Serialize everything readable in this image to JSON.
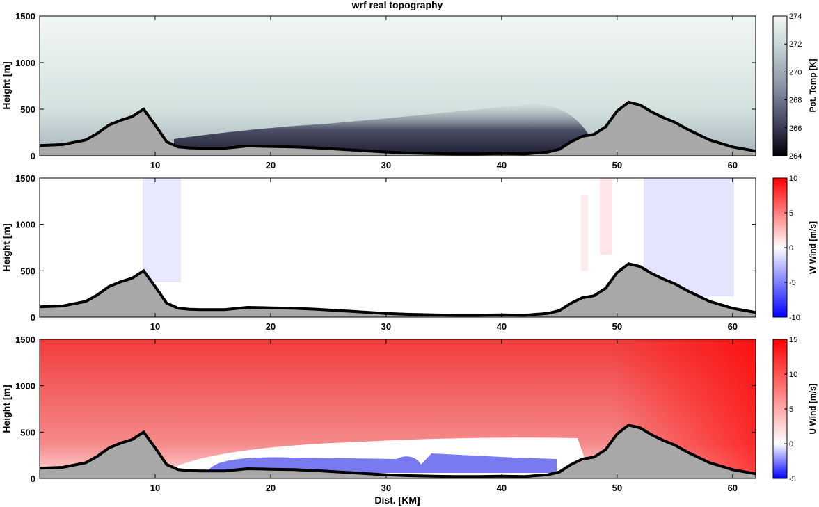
{
  "figure": {
    "title": "wrf real topography",
    "xlabel": "Dist. [KM]",
    "x_ticks": [
      10,
      20,
      30,
      40,
      50,
      60
    ],
    "y_ticks": [
      0,
      500,
      1000,
      1500
    ]
  },
  "chart_data": [
    {
      "type": "heatmap",
      "title": "wrf real topography",
      "xlabel": "",
      "ylabel": "Height [m]",
      "xlim": [
        0,
        62
      ],
      "ylim": [
        0,
        1500
      ],
      "colorbar": {
        "label": "Pot. Temp [K]",
        "ticks": [
          264,
          266,
          268,
          270,
          272,
          274
        ],
        "range": [
          264,
          274
        ],
        "colors": [
          "#000000",
          "#3a3a55",
          "#8c94a6",
          "#c8d8d8",
          "#f2f7f6"
        ]
      }
    },
    {
      "type": "heatmap",
      "xlabel": "",
      "ylabel": "Height [m]",
      "xlim": [
        0,
        62
      ],
      "ylim": [
        0,
        1500
      ],
      "colorbar": {
        "label": "W Wind [m/s]",
        "ticks": [
          -10,
          -5,
          0,
          5,
          10
        ],
        "range": [
          -10,
          10
        ],
        "colors": [
          "#0000ff",
          "#ffffff",
          "#ff0000"
        ]
      }
    },
    {
      "type": "heatmap",
      "xlabel": "Dist. [KM]",
      "ylabel": "Height [m]",
      "xlim": [
        0,
        62
      ],
      "ylim": [
        0,
        1500
      ],
      "colorbar": {
        "label": "U Wind [m/s]",
        "ticks": [
          -5,
          0,
          5,
          10,
          15
        ],
        "range": [
          -5,
          15
        ],
        "colors": [
          "#0000ff",
          "#ffffff",
          "#ff0000"
        ]
      }
    }
  ],
  "terrain_profile": {
    "fill_color": "#a8a8a8",
    "x": [
      0,
      2,
      4,
      5,
      6,
      7,
      8,
      9,
      10,
      11,
      12,
      13,
      14,
      16,
      18,
      20,
      22,
      24,
      26,
      28,
      30,
      32,
      34,
      36,
      38,
      40,
      42,
      44,
      45,
      46,
      47,
      48,
      49,
      50,
      51,
      52,
      53,
      54,
      55,
      56,
      58,
      60,
      62
    ],
    "height_m": [
      110,
      120,
      170,
      240,
      330,
      380,
      420,
      500,
      330,
      150,
      95,
      85,
      80,
      80,
      105,
      100,
      95,
      85,
      70,
      55,
      40,
      30,
      25,
      20,
      20,
      25,
      20,
      40,
      70,
      150,
      210,
      230,
      310,
      480,
      575,
      545,
      470,
      410,
      360,
      290,
      170,
      95,
      50
    ]
  }
}
